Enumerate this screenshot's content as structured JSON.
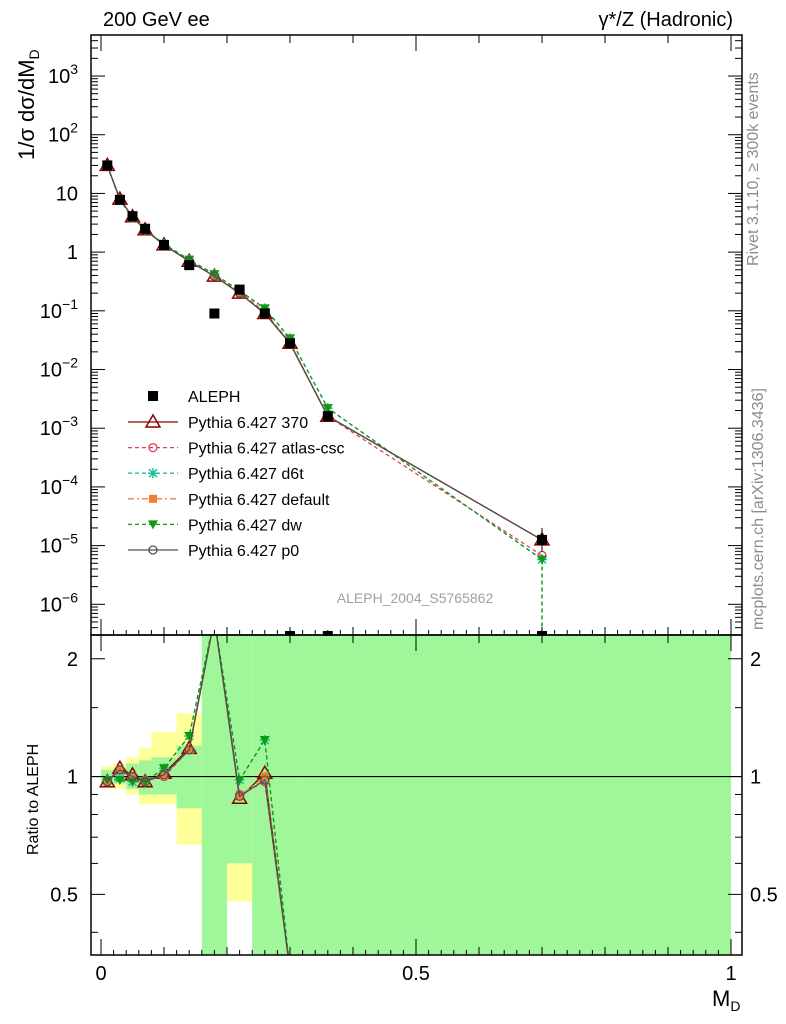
{
  "header": {
    "left_title": "200 GeV ee",
    "right_title": "γ*/Z (Hadronic)"
  },
  "side_labels": {
    "rivet": "Rivet 3.1.10, ≥ 300k events",
    "mcplots": "mcplots.cern.ch [arXiv:1306.3436]"
  },
  "watermark": "ALEPH_2004_S5765862",
  "colors": {
    "data": "#000000",
    "p370": "#8b0000",
    "atlas": "#e0405a",
    "d6t": "#1fbf9f",
    "default": "#f08030",
    "dw": "#119911",
    "p0": "#505050",
    "band_inner": "#a0f79a",
    "band_outer": "#ffff99"
  },
  "chart_data": {
    "type": "line",
    "title": "",
    "xlabel": "M_D",
    "ylabel": "1/σ dσ/dM_D",
    "xlim": [
      0,
      1
    ],
    "ylim": [
      3e-07,
      5000
    ],
    "yscale": "log",
    "x_ticks": [
      "0",
      "0.5",
      "1"
    ],
    "y_ticks": [
      "10^3",
      "10^2",
      "10",
      "1",
      "10^-1",
      "10^-2",
      "10^-3",
      "10^-4",
      "10^-5",
      "10^-6"
    ],
    "ratio": {
      "ylabel": "Ratio to ALEPH",
      "ylim": [
        0.35,
        2.3
      ],
      "yscale": "log",
      "y_ticks": [
        "0.5",
        "1",
        "2"
      ],
      "band_x_edges": [
        0,
        0.02,
        0.04,
        0.06,
        0.08,
        0.12,
        0.16,
        0.2,
        0.24,
        0.28,
        0.32,
        1.0
      ],
      "band_inner_lo": [
        0.96,
        0.96,
        0.93,
        0.9,
        0.9,
        0.83,
        0.3,
        0.6,
        0.3,
        0.3,
        0.3
      ],
      "band_inner_hi": [
        1.04,
        1.05,
        1.08,
        1.1,
        1.12,
        1.2,
        2.5,
        2.5,
        2.5,
        2.5,
        2.5
      ],
      "band_outer_lo": [
        0.95,
        0.93,
        0.9,
        0.85,
        0.85,
        0.67,
        0.3,
        0.48,
        0.3,
        0.3,
        0.3
      ],
      "band_outer_hi": [
        1.06,
        1.08,
        1.12,
        1.18,
        1.3,
        1.45,
        2.5,
        2.5,
        2.5,
        2.5,
        2.5
      ]
    },
    "data_series": {
      "name": "ALEPH",
      "x": [
        0.01,
        0.03,
        0.05,
        0.07,
        0.1,
        0.14,
        0.18,
        0.22,
        0.26,
        0.3,
        0.36,
        0.7
      ],
      "y": [
        30,
        7.8,
        4.1,
        2.5,
        1.32,
        0.6,
        0.09,
        0.23,
        0.09,
        0.028,
        0.0016,
        1.25e-05
      ]
    },
    "zero_markers_x": [
      0.3,
      0.36,
      0.7
    ],
    "series": [
      {
        "name": "Pythia 6.427 370",
        "key": "p370",
        "x": [
          0.01,
          0.03,
          0.05,
          0.07,
          0.1,
          0.14,
          0.18,
          0.22,
          0.26,
          0.3,
          0.36,
          0.7
        ],
        "y": [
          30,
          8.0,
          4.0,
          2.4,
          1.33,
          0.7,
          0.39,
          0.2,
          0.09,
          0.028,
          0.0016,
          1.25e-05
        ],
        "ratio": [
          0.97,
          1.05,
          1.01,
          0.97,
          1.02,
          1.18,
          4.5,
          0.88,
          1.02,
          0.32
        ]
      },
      {
        "name": "Pythia 6.427 atlas-csc",
        "key": "atlas",
        "x": [
          0.01,
          0.03,
          0.05,
          0.07,
          0.1,
          0.14,
          0.18,
          0.22,
          0.26,
          0.3,
          0.36,
          0.7
        ],
        "y": [
          30,
          8.0,
          4.0,
          2.4,
          1.32,
          0.7,
          0.39,
          0.21,
          0.095,
          0.029,
          0.0016,
          6.8e-06
        ],
        "ratio": [
          0.98,
          1.04,
          0.99,
          0.98,
          1.0,
          1.17,
          4.4,
          0.9,
          0.97,
          0.32
        ]
      },
      {
        "name": "Pythia 6.427 d6t",
        "key": "d6t",
        "x": [
          0.01,
          0.03,
          0.05,
          0.07,
          0.1,
          0.14,
          0.18,
          0.22,
          0.26,
          0.3,
          0.36,
          0.7
        ],
        "y": [
          30,
          7.7,
          3.9,
          2.4,
          1.38,
          0.74,
          0.42,
          0.22,
          0.11,
          0.034,
          0.0022,
          5.8e-06
        ],
        "ratio": [
          0.98,
          0.99,
          0.97,
          0.97,
          1.05,
          1.27,
          4.6,
          0.98,
          1.24,
          0.32
        ]
      },
      {
        "name": "Pythia 6.427 default",
        "key": "default",
        "x": [
          0.01,
          0.03,
          0.05,
          0.07,
          0.1,
          0.14,
          0.18,
          0.22,
          0.26,
          0.3,
          0.36,
          0.7
        ],
        "y": [
          30,
          8.0,
          4.0,
          2.4,
          1.33,
          0.7,
          0.39,
          0.2,
          0.09,
          0.028,
          0.0016,
          1.25e-05
        ],
        "ratio": [
          0.97,
          1.04,
          1.0,
          0.97,
          1.01,
          1.17,
          4.5,
          0.89,
          1.0,
          0.32
        ]
      },
      {
        "name": "Pythia 6.427 dw",
        "key": "dw",
        "x": [
          0.01,
          0.03,
          0.05,
          0.07,
          0.1,
          0.14,
          0.18,
          0.22,
          0.26,
          0.3,
          0.36,
          0.7
        ],
        "y": [
          30,
          7.7,
          3.9,
          2.4,
          1.38,
          0.74,
          0.42,
          0.22,
          0.11,
          0.034,
          0.0022,
          5.8e-06
        ],
        "ratio": [
          0.98,
          0.98,
          0.97,
          0.97,
          1.05,
          1.27,
          4.6,
          0.98,
          1.24,
          0.32
        ]
      },
      {
        "name": "Pythia 6.427 p0",
        "key": "p0",
        "x": [
          0.01,
          0.03,
          0.05,
          0.07,
          0.1,
          0.14,
          0.18,
          0.22,
          0.26,
          0.3,
          0.36,
          0.7
        ],
        "y": [
          30,
          8.0,
          4.0,
          2.4,
          1.33,
          0.7,
          0.39,
          0.2,
          0.09,
          0.028,
          0.0016,
          1.25e-05
        ],
        "ratio": [
          0.97,
          1.04,
          1.0,
          0.97,
          1.01,
          1.17,
          4.5,
          0.89,
          0.98,
          0.32
        ]
      }
    ]
  }
}
